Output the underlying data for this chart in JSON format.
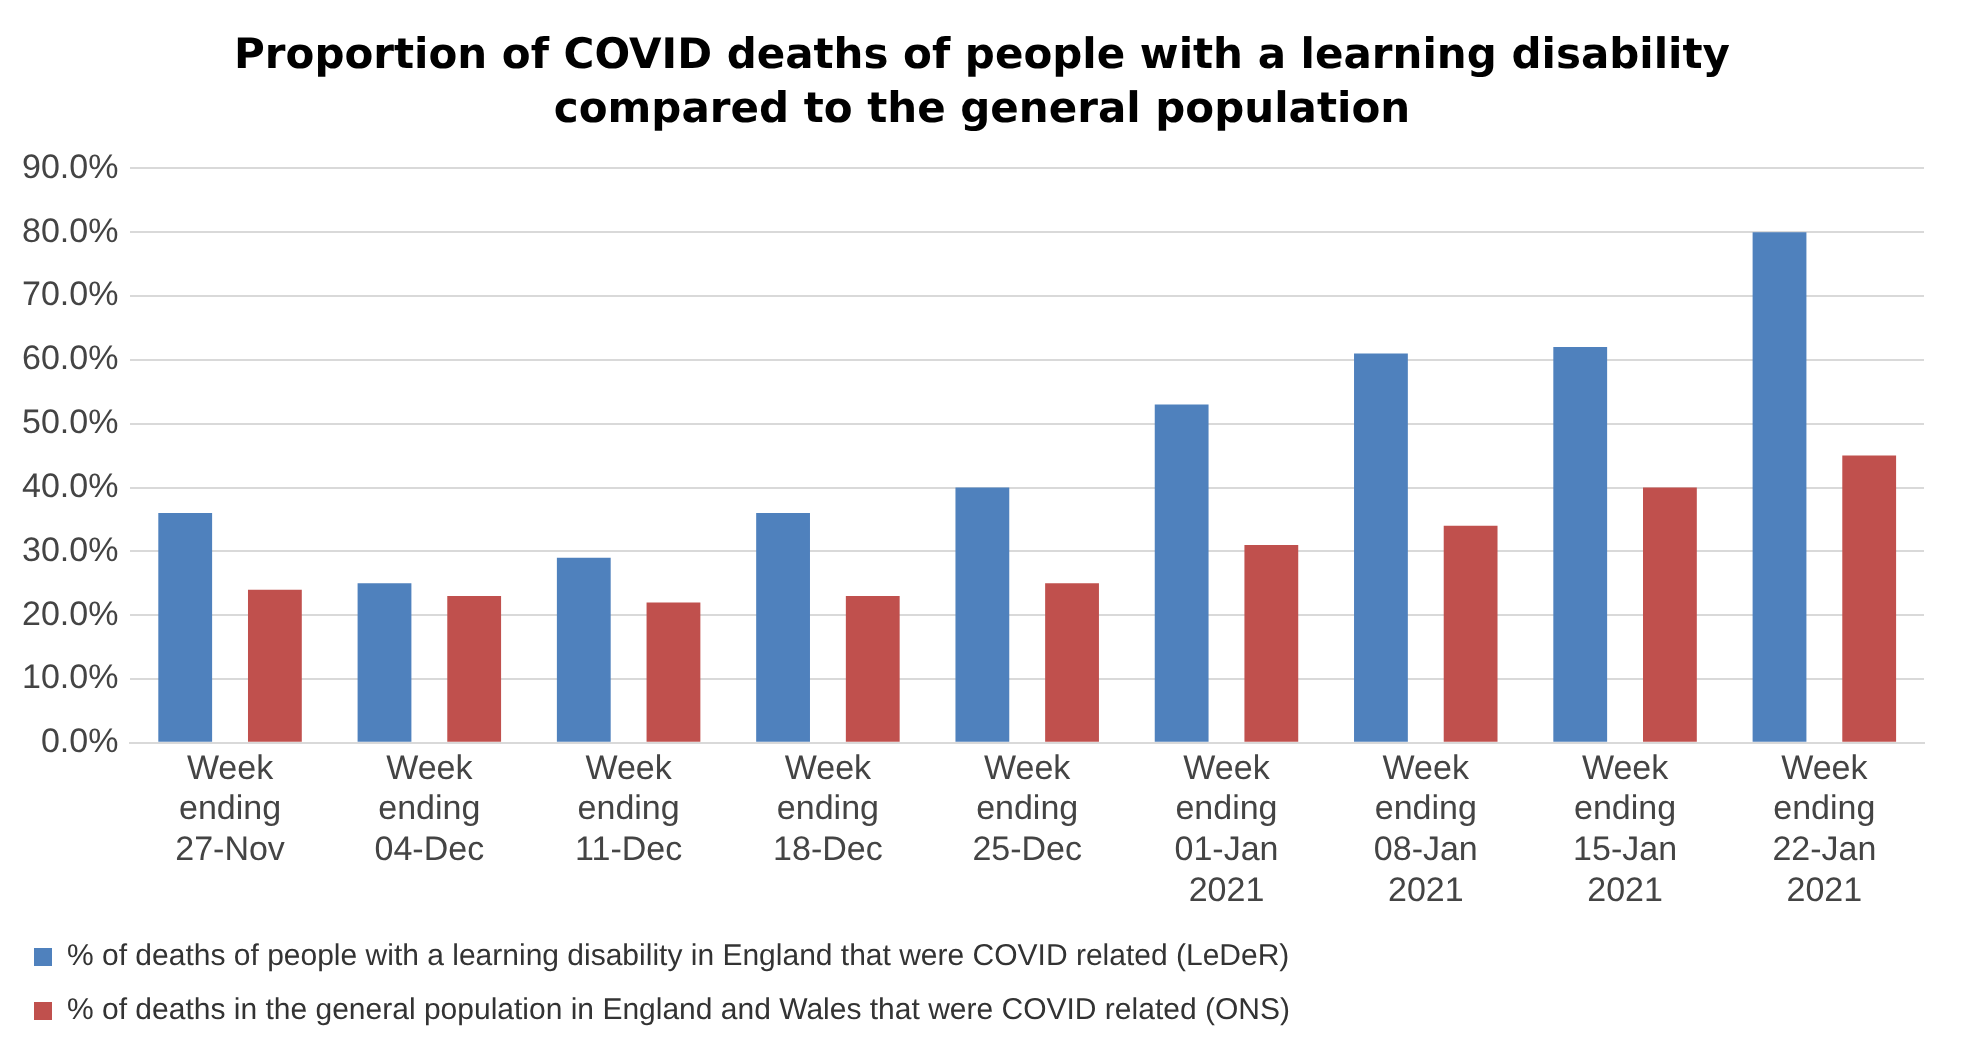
{
  "chart_data": {
    "type": "bar",
    "title": "Proportion of COVID deaths of people with a learning disability compared to the general population",
    "categories": [
      "Week ending 27-Nov",
      "Week ending 04-Dec",
      "Week ending 11-Dec",
      "Week ending 18-Dec",
      "Week ending 25-Dec",
      "Week ending 01-Jan 2021",
      "Week ending 08-Jan 2021",
      "Week ending 15-Jan 2021",
      "Week ending 22-Jan 2021"
    ],
    "series": [
      {
        "name": "% of deaths of people with a learning disability in England that were COVID related (LeDeR)",
        "color": "#4f81bd",
        "values": [
          36,
          25,
          29,
          36,
          40,
          53,
          61,
          62,
          80
        ]
      },
      {
        "name": "% of deaths in the general population in England and Wales that were COVID related (ONS)",
        "color": "#c0504d",
        "values": [
          24,
          23,
          22,
          23,
          25,
          31,
          34,
          40,
          45
        ]
      }
    ],
    "ylim": [
      0,
      90
    ],
    "yticks": [
      {
        "value": 0,
        "label": "0.0%"
      },
      {
        "value": 10,
        "label": "10.0%"
      },
      {
        "value": 20,
        "label": "20.0%"
      },
      {
        "value": 30,
        "label": "30.0%"
      },
      {
        "value": 40,
        "label": "40.0%"
      },
      {
        "value": 50,
        "label": "50.0%"
      },
      {
        "value": 60,
        "label": "60.0%"
      },
      {
        "value": 70,
        "label": "70.0%"
      },
      {
        "value": 80,
        "label": "80.0%"
      },
      {
        "value": 90,
        "label": "90.0%"
      }
    ],
    "grid": "y",
    "legend": "bottom"
  }
}
